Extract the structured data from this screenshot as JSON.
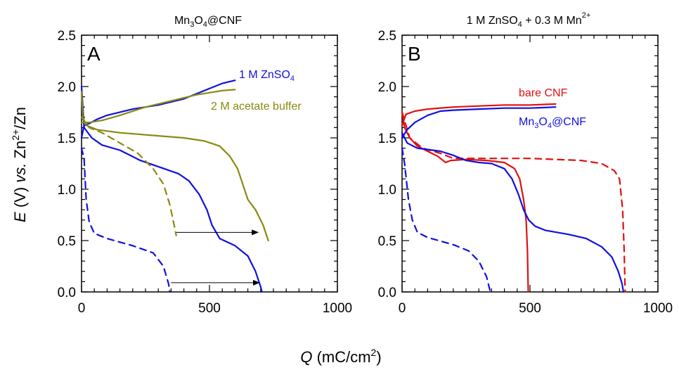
{
  "figure": {
    "ylabel": "E (V) vs. Zn²⁺/Zn",
    "xlabel": "Q (mC/cm²)"
  },
  "chart_data": [
    {
      "type": "line",
      "panel_label": "A",
      "title": "Mn3O4@CNF",
      "xlim": [
        0,
        1000
      ],
      "ylim": [
        0,
        2.5
      ],
      "xticks": [
        0,
        500,
        1000
      ],
      "yticks": [
        0.0,
        0.5,
        1.0,
        1.5,
        2.0,
        2.5
      ],
      "xtick_labels": [
        "0",
        "500",
        "1000"
      ],
      "ytick_labels": [
        "0.0",
        "0.5",
        "1.0",
        "1.5",
        "2.0",
        "2.5"
      ],
      "grid": false,
      "legend_placement": "annotations next to curves",
      "series": [
        {
          "name": "1 M ZnSO4",
          "color": "#1010e0",
          "style": "solid",
          "role": "charge",
          "points": [
            [
              0,
              1.5
            ],
            [
              10,
              1.62
            ],
            [
              30,
              1.64
            ],
            [
              60,
              1.68
            ],
            [
              100,
              1.72
            ],
            [
              200,
              1.78
            ],
            [
              300,
              1.82
            ],
            [
              400,
              1.88
            ],
            [
              500,
              1.98
            ],
            [
              550,
              2.03
            ],
            [
              600,
              2.06
            ]
          ]
        },
        {
          "name": "1 M ZnSO4",
          "color": "#1010e0",
          "style": "solid",
          "role": "discharge",
          "points": [
            [
              0,
              2.0
            ],
            [
              10,
              1.6
            ],
            [
              40,
              1.5
            ],
            [
              80,
              1.43
            ],
            [
              150,
              1.38
            ],
            [
              230,
              1.28
            ],
            [
              300,
              1.22
            ],
            [
              380,
              1.15
            ],
            [
              420,
              1.08
            ],
            [
              460,
              0.95
            ],
            [
              490,
              0.8
            ],
            [
              510,
              0.65
            ],
            [
              540,
              0.52
            ],
            [
              600,
              0.45
            ],
            [
              650,
              0.35
            ],
            [
              680,
              0.2
            ],
            [
              700,
              0.05
            ],
            [
              705,
              0.0
            ]
          ]
        },
        {
          "name": "1 M ZnSO4",
          "color": "#1010e0",
          "style": "dashed",
          "role": "discharge",
          "points": [
            [
              0,
              1.4
            ],
            [
              10,
              1.3
            ],
            [
              18,
              0.9
            ],
            [
              30,
              0.68
            ],
            [
              50,
              0.57
            ],
            [
              100,
              0.52
            ],
            [
              200,
              0.45
            ],
            [
              280,
              0.38
            ],
            [
              320,
              0.25
            ],
            [
              340,
              0.08
            ],
            [
              345,
              0.0
            ]
          ]
        },
        {
          "name": "2 M acetate buffer",
          "color": "#8a8a10",
          "style": "solid",
          "role": "charge",
          "points": [
            [
              0,
              1.65
            ],
            [
              30,
              1.65
            ],
            [
              80,
              1.67
            ],
            [
              150,
              1.72
            ],
            [
              250,
              1.8
            ],
            [
              350,
              1.86
            ],
            [
              450,
              1.92
            ],
            [
              550,
              1.96
            ],
            [
              600,
              1.97
            ]
          ]
        },
        {
          "name": "2 M acetate buffer",
          "color": "#8a8a10",
          "style": "solid",
          "role": "discharge",
          "points": [
            [
              0,
              1.95
            ],
            [
              5,
              1.7
            ],
            [
              20,
              1.62
            ],
            [
              60,
              1.58
            ],
            [
              150,
              1.55
            ],
            [
              300,
              1.52
            ],
            [
              400,
              1.5
            ],
            [
              480,
              1.47
            ],
            [
              540,
              1.42
            ],
            [
              580,
              1.32
            ],
            [
              610,
              1.2
            ],
            [
              630,
              1.05
            ],
            [
              650,
              0.9
            ],
            [
              680,
              0.8
            ],
            [
              710,
              0.65
            ],
            [
              730,
              0.5
            ]
          ]
        },
        {
          "name": "2 M acetate buffer",
          "color": "#8a8a10",
          "style": "dashed",
          "role": "discharge",
          "points": [
            [
              0,
              1.7
            ],
            [
              30,
              1.6
            ],
            [
              80,
              1.55
            ],
            [
              150,
              1.45
            ],
            [
              220,
              1.35
            ],
            [
              280,
              1.2
            ],
            [
              320,
              1.05
            ],
            [
              345,
              0.85
            ],
            [
              362,
              0.65
            ],
            [
              370,
              0.55
            ]
          ]
        }
      ],
      "annotations": [
        {
          "text": "1 M ZnSO4",
          "color": "#1010e0"
        },
        {
          "text": "2 M acetate buffer",
          "color": "#8a8a10"
        }
      ],
      "arrows": [
        {
          "from": [
            370,
            0.58
          ],
          "to": [
            690,
            0.58
          ]
        },
        {
          "from": [
            350,
            0.09
          ],
          "to": [
            695,
            0.09
          ]
        }
      ]
    },
    {
      "type": "line",
      "panel_label": "B",
      "title": "1 M ZnSO4 + 0.3 M Mn2+",
      "xlim": [
        0,
        1000
      ],
      "ylim": [
        0,
        2.5
      ],
      "xticks": [
        0,
        500,
        1000
      ],
      "yticks": [
        0.0,
        0.5,
        1.0,
        1.5,
        2.0,
        2.5
      ],
      "xtick_labels": [
        "0",
        "500",
        "1000"
      ],
      "ytick_labels": [
        "0.0",
        "0.5",
        "1.0",
        "1.5",
        "2.0",
        "2.5"
      ],
      "grid": false,
      "legend_placement": "annotations next to curves",
      "series": [
        {
          "name": "bare CNF",
          "color": "#e01010",
          "style": "solid",
          "role": "charge",
          "points": [
            [
              0,
              1.62
            ],
            [
              15,
              1.73
            ],
            [
              50,
              1.76
            ],
            [
              100,
              1.78
            ],
            [
              200,
              1.8
            ],
            [
              300,
              1.81
            ],
            [
              400,
              1.82
            ],
            [
              500,
              1.82
            ],
            [
              600,
              1.83
            ]
          ]
        },
        {
          "name": "bare CNF",
          "color": "#e01010",
          "style": "solid",
          "role": "discharge",
          "points": [
            [
              0,
              1.75
            ],
            [
              10,
              1.6
            ],
            [
              30,
              1.5
            ],
            [
              60,
              1.42
            ],
            [
              100,
              1.37
            ],
            [
              140,
              1.32
            ],
            [
              170,
              1.26
            ],
            [
              190,
              1.28
            ],
            [
              250,
              1.29
            ],
            [
              330,
              1.28
            ],
            [
              400,
              1.26
            ],
            [
              440,
              1.2
            ],
            [
              460,
              1.1
            ],
            [
              475,
              0.9
            ],
            [
              485,
              0.7
            ],
            [
              490,
              0.4
            ],
            [
              493,
              0.0
            ]
          ]
        },
        {
          "name": "bare CNF",
          "color": "#e01010",
          "style": "dashed",
          "role": "discharge",
          "points": [
            [
              0,
              1.75
            ],
            [
              30,
              1.5
            ],
            [
              80,
              1.4
            ],
            [
              150,
              1.35
            ],
            [
              200,
              1.3
            ],
            [
              300,
              1.3
            ],
            [
              500,
              1.3
            ],
            [
              700,
              1.28
            ],
            [
              780,
              1.25
            ],
            [
              830,
              1.18
            ],
            [
              850,
              1.1
            ],
            [
              862,
              0.8
            ],
            [
              868,
              0.4
            ],
            [
              872,
              0.0
            ]
          ]
        },
        {
          "name": "Mn3O4@CNF",
          "color": "#1010e0",
          "style": "solid",
          "role": "charge",
          "points": [
            [
              0,
              1.5
            ],
            [
              20,
              1.58
            ],
            [
              50,
              1.65
            ],
            [
              100,
              1.72
            ],
            [
              150,
              1.76
            ],
            [
              200,
              1.77
            ],
            [
              300,
              1.78
            ],
            [
              400,
              1.79
            ],
            [
              500,
              1.79
            ],
            [
              600,
              1.8
            ]
          ]
        },
        {
          "name": "Mn3O4@CNF",
          "color": "#1010e0",
          "style": "solid",
          "role": "discharge",
          "points": [
            [
              0,
              1.55
            ],
            [
              20,
              1.45
            ],
            [
              60,
              1.4
            ],
            [
              150,
              1.37
            ],
            [
              200,
              1.33
            ],
            [
              250,
              1.28
            ],
            [
              300,
              1.26
            ],
            [
              350,
              1.25
            ],
            [
              400,
              1.2
            ],
            [
              430,
              1.1
            ],
            [
              455,
              0.95
            ],
            [
              475,
              0.8
            ],
            [
              495,
              0.7
            ],
            [
              520,
              0.64
            ],
            [
              560,
              0.6
            ],
            [
              650,
              0.56
            ],
            [
              720,
              0.52
            ],
            [
              780,
              0.44
            ],
            [
              820,
              0.34
            ],
            [
              845,
              0.2
            ],
            [
              860,
              0.08
            ],
            [
              865,
              0.0
            ]
          ]
        },
        {
          "name": "Mn3O4@CNF",
          "color": "#1010e0",
          "style": "dashed",
          "role": "discharge",
          "points": [
            [
              0,
              1.4
            ],
            [
              10,
              1.25
            ],
            [
              25,
              0.9
            ],
            [
              40,
              0.7
            ],
            [
              60,
              0.58
            ],
            [
              100,
              0.53
            ],
            [
              200,
              0.46
            ],
            [
              260,
              0.4
            ],
            [
              300,
              0.3
            ],
            [
              330,
              0.15
            ],
            [
              345,
              0.0
            ]
          ]
        }
      ],
      "annotations": [
        {
          "text": "bare CNF",
          "color": "#e01010"
        },
        {
          "text": "Mn3O4@CNF",
          "color": "#1010e0"
        }
      ],
      "arrows": []
    }
  ]
}
